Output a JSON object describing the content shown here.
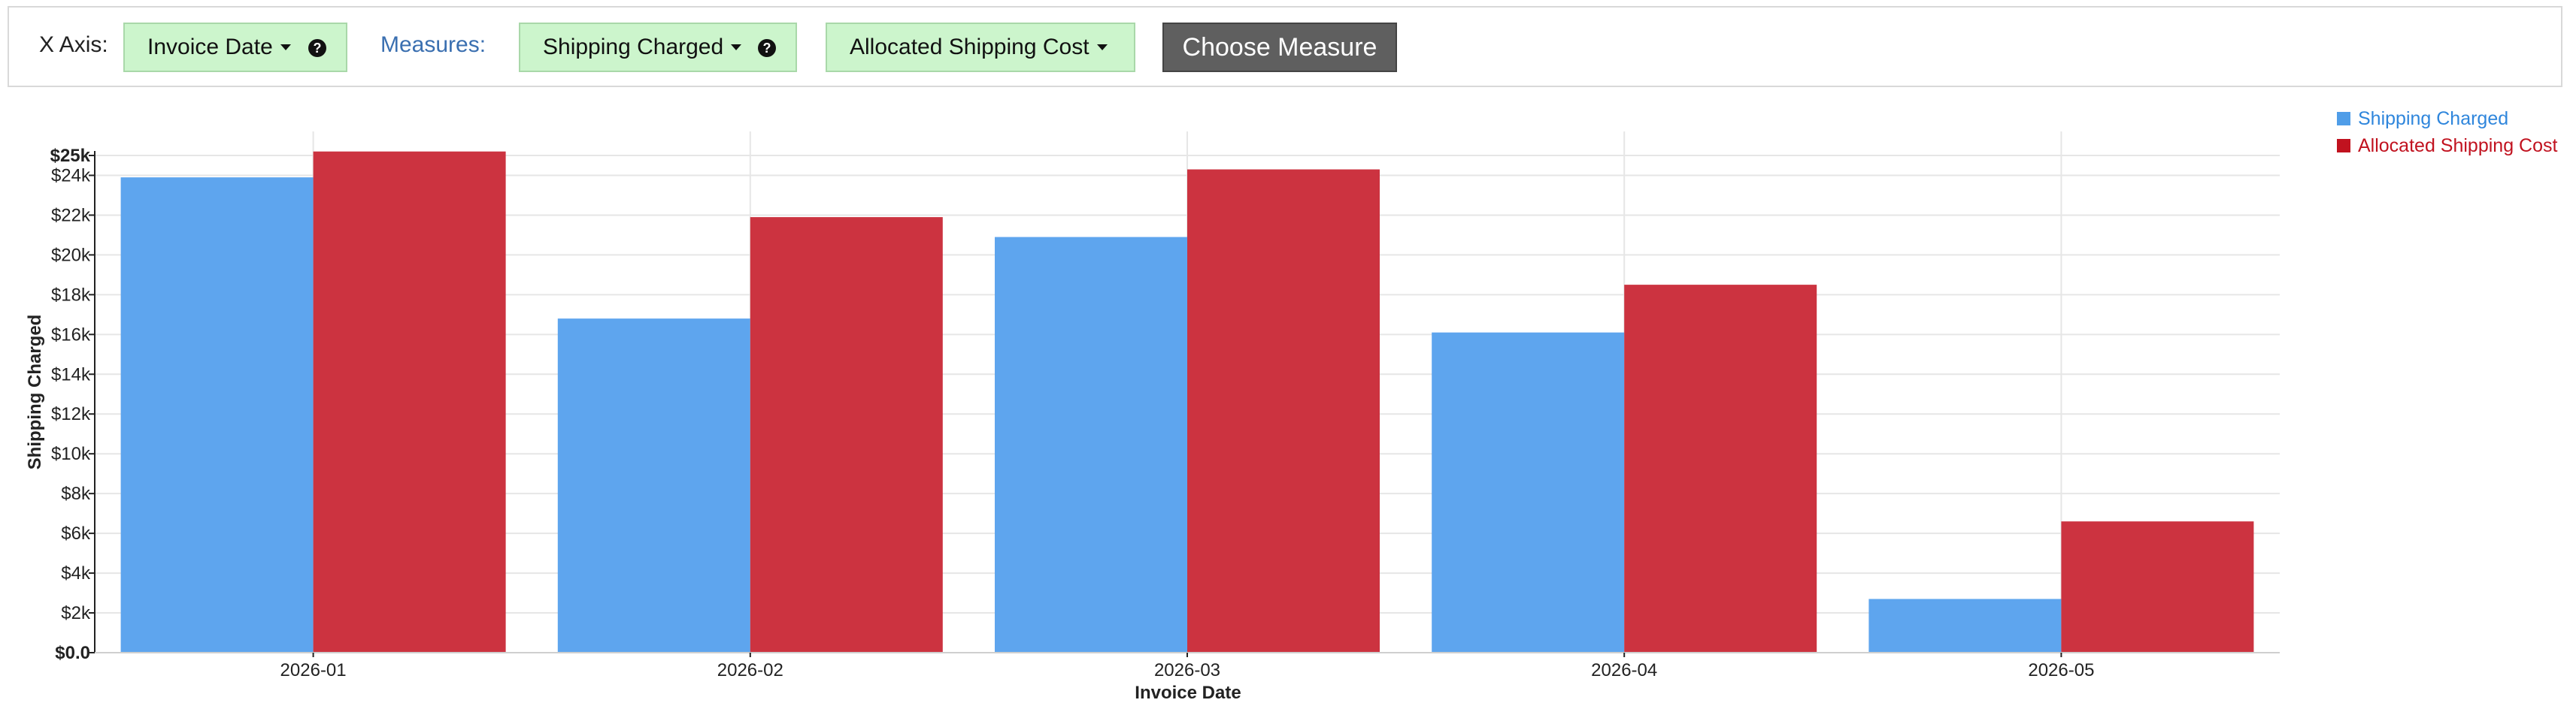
{
  "toolbar": {
    "x_axis_label": "X Axis:",
    "x_axis_value": "Invoice Date",
    "measures_label": "Measures:",
    "measure_1": "Shipping Charged",
    "measure_2": "Allocated Shipping Cost",
    "choose_button": "Choose Measure",
    "help_glyph": "?"
  },
  "colors": {
    "shipping_charged": "#5ea5ee",
    "allocated_shipping_cost": "#cc3340",
    "toolbar_pill_bg": "#ccf5cc",
    "choose_button_bg": "#5f5f5f"
  },
  "chart_data": {
    "type": "bar",
    "categories": [
      "2026-01",
      "2026-02",
      "2026-03",
      "2026-04",
      "2026-05"
    ],
    "series": [
      {
        "name": "Shipping Charged",
        "values": [
          23900,
          16800,
          20900,
          16100,
          2700
        ]
      },
      {
        "name": "Allocated Shipping Cost",
        "values": [
          25200,
          21900,
          24300,
          18500,
          6600
        ]
      }
    ],
    "xlabel": "Invoice Date",
    "ylabel": "Shipping Charged",
    "ylim": [
      0,
      25000
    ],
    "yticks": [
      {
        "value": 0,
        "label": "$0.0"
      },
      {
        "value": 2000,
        "label": "$2k"
      },
      {
        "value": 4000,
        "label": "$4k"
      },
      {
        "value": 6000,
        "label": "$6k"
      },
      {
        "value": 8000,
        "label": "$8k"
      },
      {
        "value": 10000,
        "label": "$10k"
      },
      {
        "value": 12000,
        "label": "$12k"
      },
      {
        "value": 14000,
        "label": "$14k"
      },
      {
        "value": 16000,
        "label": "$16k"
      },
      {
        "value": 18000,
        "label": "$18k"
      },
      {
        "value": 20000,
        "label": "$20k"
      },
      {
        "value": 22000,
        "label": "$22k"
      },
      {
        "value": 24000,
        "label": "$24k"
      },
      {
        "value": 25000,
        "label": "$25k"
      }
    ],
    "grid": true,
    "legend_position": "top-right"
  }
}
